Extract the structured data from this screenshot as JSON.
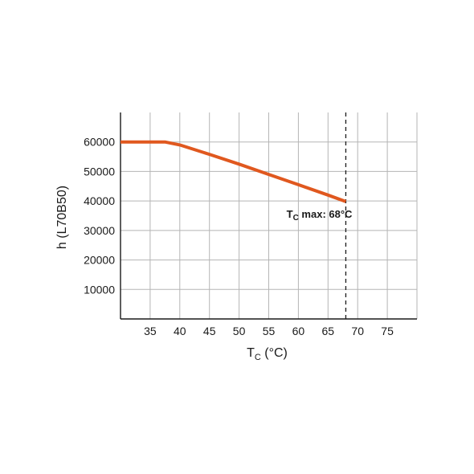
{
  "chart_data": {
    "type": "line",
    "xlabel_main": "T",
    "xlabel_sub": "C",
    "xlabel_unit": " (°C)",
    "ylabel": "h (L70B50)",
    "xlim": [
      30,
      80
    ],
    "ylim": [
      0,
      70000
    ],
    "x_ticks": [
      35,
      40,
      45,
      50,
      55,
      60,
      65,
      70,
      75
    ],
    "y_ticks": [
      10000,
      20000,
      30000,
      40000,
      50000,
      60000
    ],
    "y_tick_labels": [
      "10000",
      "20000",
      "30000",
      "40000",
      "50000",
      "60000"
    ],
    "grid": true,
    "series": [
      {
        "color": "#e0581f",
        "x": [
          30,
          37.5,
          40,
          45,
          50,
          55,
          60,
          65,
          68
        ],
        "y": [
          60000,
          60000,
          59000,
          55800,
          52500,
          49000,
          45500,
          42000,
          39800
        ]
      }
    ],
    "max_line": {
      "x": 68,
      "label_main": "T",
      "label_sub": "C",
      "label_rest": " max: 68°C"
    }
  }
}
